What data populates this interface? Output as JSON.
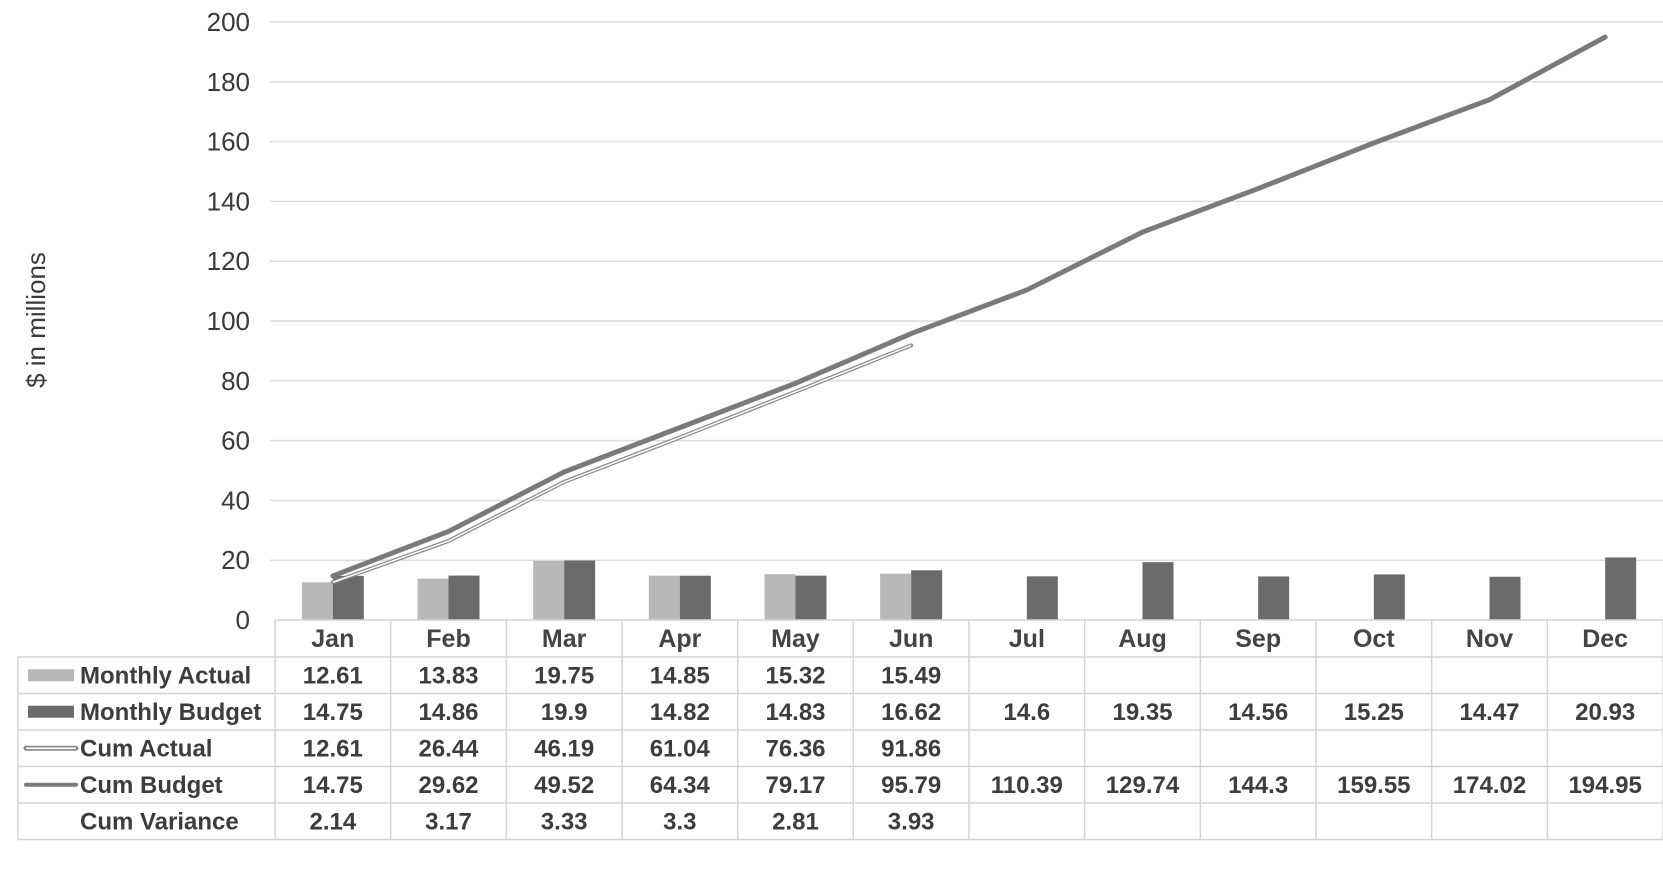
{
  "chart_data": {
    "type": "bar",
    "categories": [
      "Jan",
      "Feb",
      "Mar",
      "Apr",
      "May",
      "Jun",
      "Jul",
      "Aug",
      "Sep",
      "Oct",
      "Nov",
      "Dec"
    ],
    "ylabel": "$ in millions",
    "ylim": [
      0,
      200
    ],
    "yticks": [
      0,
      20,
      40,
      60,
      80,
      100,
      120,
      140,
      160,
      180,
      200
    ],
    "grid": true,
    "legend": "data-table-left",
    "series": [
      {
        "name": "Monthly Actual",
        "kind": "bar",
        "color": "#b8b8b8",
        "values": [
          12.61,
          13.83,
          19.75,
          14.85,
          15.32,
          15.49,
          null,
          null,
          null,
          null,
          null,
          null
        ]
      },
      {
        "name": "Monthly Budget",
        "kind": "bar",
        "color": "#6b6b6b",
        "values": [
          14.75,
          14.86,
          19.9,
          14.82,
          14.83,
          16.62,
          14.6,
          19.35,
          14.56,
          15.25,
          14.47,
          20.93
        ]
      },
      {
        "name": "Cum Actual",
        "kind": "line",
        "color": "#8a8a8a",
        "values": [
          12.61,
          26.44,
          46.19,
          61.04,
          76.36,
          91.86,
          null,
          null,
          null,
          null,
          null,
          null
        ]
      },
      {
        "name": "Cum Budget",
        "kind": "line",
        "color": "#7a7a7a",
        "values": [
          14.75,
          29.62,
          49.52,
          64.34,
          79.17,
          95.79,
          110.39,
          129.74,
          144.3,
          159.55,
          174.02,
          194.95
        ]
      }
    ],
    "table_rows": [
      {
        "name": "Monthly Actual",
        "cells": [
          "12.61",
          "13.83",
          "19.75",
          "14.85",
          "15.32",
          "15.49",
          "",
          "",
          "",
          "",
          "",
          ""
        ]
      },
      {
        "name": "Monthly Budget",
        "cells": [
          "14.75",
          "14.86",
          "19.9",
          "14.82",
          "14.83",
          "16.62",
          "14.6",
          "19.35",
          "14.56",
          "15.25",
          "14.47",
          "20.93"
        ]
      },
      {
        "name": "Cum Actual",
        "cells": [
          "12.61",
          "26.44",
          "46.19",
          "61.04",
          "76.36",
          "91.86",
          "",
          "",
          "",
          "",
          "",
          ""
        ]
      },
      {
        "name": "Cum Budget",
        "cells": [
          "14.75",
          "29.62",
          "49.52",
          "64.34",
          "79.17",
          "95.79",
          "110.39",
          "129.74",
          "144.3",
          "159.55",
          "174.02",
          "194.95"
        ]
      },
      {
        "name": "Cum Variance",
        "cells": [
          "2.14",
          "3.17",
          "3.33",
          "3.3",
          "2.81",
          "3.93",
          "",
          "",
          "",
          "",
          "",
          ""
        ]
      }
    ]
  }
}
